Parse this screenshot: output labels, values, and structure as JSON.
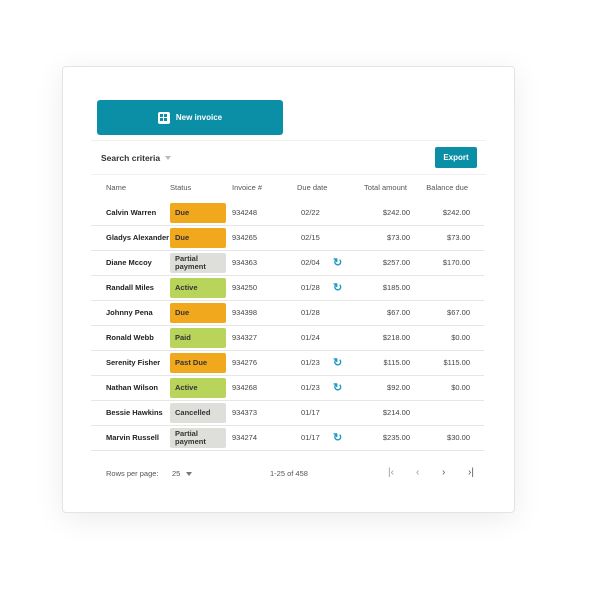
{
  "new_invoice_label": "New invoice",
  "search_criteria_label": "Search criteria",
  "export_label": "Export",
  "columns": [
    "Name",
    "Status",
    "Invoice #",
    "Due date",
    "Total amount",
    "Balance due"
  ],
  "status_colors": {
    "Due": "#f2a81d",
    "Past Due": "#f2a81d",
    "Active": "#b9d45a",
    "Paid": "#b9d45a",
    "Partial payment": "#dededb",
    "Cancelled": "#dededb"
  },
  "rows": [
    {
      "name": "Calvin Warren",
      "status": "Due",
      "invoice": "934248",
      "due": "02/22",
      "recurring": false,
      "total": "$242.00",
      "balance": "$242.00"
    },
    {
      "name": "Gladys Alexander",
      "status": "Due",
      "invoice": "934265",
      "due": "02/15",
      "recurring": false,
      "total": "$73.00",
      "balance": "$73.00"
    },
    {
      "name": "Diane Mccoy",
      "status": "Partial payment",
      "invoice": "934363",
      "due": "02/04",
      "recurring": true,
      "total": "$257.00",
      "balance": "$170.00"
    },
    {
      "name": "Randall Miles",
      "status": "Active",
      "invoice": "934250",
      "due": "01/28",
      "recurring": true,
      "total": "$185.00",
      "balance": ""
    },
    {
      "name": "Johnny Pena",
      "status": "Due",
      "invoice": "934398",
      "due": "01/28",
      "recurring": false,
      "total": "$67.00",
      "balance": "$67.00"
    },
    {
      "name": "Ronald Webb",
      "status": "Paid",
      "invoice": "934327",
      "due": "01/24",
      "recurring": false,
      "total": "$218.00",
      "balance": "$0.00"
    },
    {
      "name": "Serenity Fisher",
      "status": "Past Due",
      "invoice": "934276",
      "due": "01/23",
      "recurring": true,
      "total": "$115.00",
      "balance": "$115.00"
    },
    {
      "name": "Nathan Wilson",
      "status": "Active",
      "invoice": "934268",
      "due": "01/23",
      "recurring": true,
      "total": "$92.00",
      "balance": "$0.00"
    },
    {
      "name": "Bessie Hawkins",
      "status": "Cancelled",
      "invoice": "934373",
      "due": "01/17",
      "recurring": false,
      "total": "$214.00",
      "balance": ""
    },
    {
      "name": "Marvin Russell",
      "status": "Partial payment",
      "invoice": "934274",
      "due": "01/17",
      "recurring": true,
      "total": "$235.00",
      "balance": "$30.00"
    }
  ],
  "pagination": {
    "rows_per_page_label": "Rows per page:",
    "rows_per_page": "25",
    "range": "1-25 of 458"
  }
}
